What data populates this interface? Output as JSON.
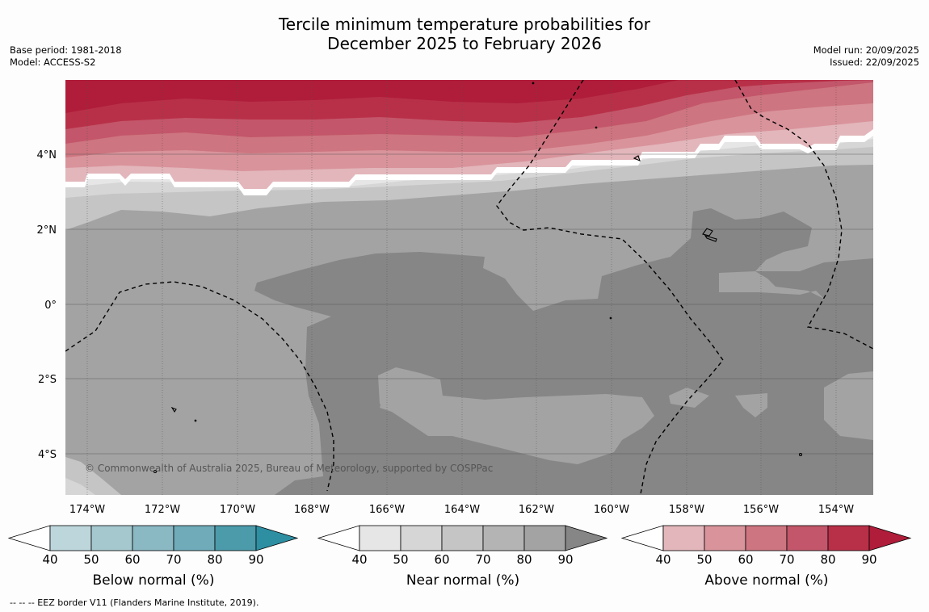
{
  "title": {
    "line1": "Tercile minimum temperature probabilities for",
    "line2": "December 2025 to February 2026"
  },
  "meta": {
    "base_period": "Base period: 1981-2018",
    "model": "Model: ACCESS-S2",
    "model_run": "Model run: 20/09/2025",
    "issued": "Issued: 22/09/2025"
  },
  "map": {
    "lon_labels": [
      "174°W",
      "172°W",
      "170°W",
      "168°W",
      "166°W",
      "164°W",
      "162°W",
      "160°W",
      "158°W",
      "156°W",
      "154°W"
    ],
    "lat_labels": [
      "4°N",
      "2°N",
      "0°",
      "2°S",
      "4°S"
    ],
    "copyright": "© Commonwealth of Australia 2025, Bureau of Meteorology, supported by COSPPac"
  },
  "colorbars": [
    {
      "title": "Below normal (%)",
      "ticks": [
        "40",
        "50",
        "60",
        "70",
        "80",
        "90"
      ],
      "colors": [
        "#ffffff",
        "#bcd6dc",
        "#a5c8ce",
        "#8ab8c3",
        "#6fabb9",
        "#4b9bab",
        "#2e8fa3"
      ]
    },
    {
      "title": "Near normal (%)",
      "ticks": [
        "40",
        "50",
        "60",
        "70",
        "80",
        "90"
      ],
      "colors": [
        "#ffffff",
        "#e6e6e6",
        "#d6d6d6",
        "#c5c5c5",
        "#b4b4b4",
        "#a3a3a3",
        "#868686"
      ]
    },
    {
      "title": "Above normal (%)",
      "ticks": [
        "40",
        "50",
        "60",
        "70",
        "80",
        "90"
      ],
      "colors": [
        "#ffffff",
        "#e2b6bb",
        "#d9939b",
        "#cd7580",
        "#c3566a",
        "#b83048",
        "#af1d3a"
      ]
    }
  ],
  "footnote": "--  --  -- EEZ border V11 (Flanders Marine Institute, 2019)."
}
